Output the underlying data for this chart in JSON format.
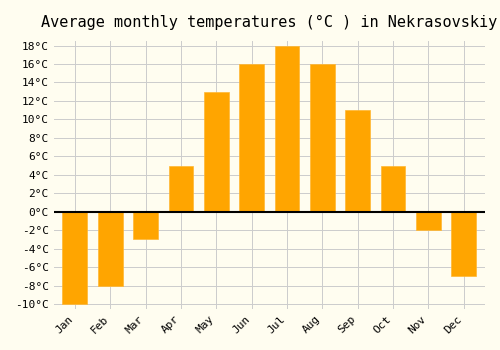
{
  "title": "Average monthly temperatures (°C ) in Nekrasovskiy",
  "months": [
    "Jan",
    "Feb",
    "Mar",
    "Apr",
    "May",
    "Jun",
    "Jul",
    "Aug",
    "Sep",
    "Oct",
    "Nov",
    "Dec"
  ],
  "temperatures": [
    -10,
    -8,
    -3,
    5,
    13,
    16,
    18,
    16,
    11,
    5,
    -2,
    -7
  ],
  "bar_color": "#FFA500",
  "bar_color_light": "#FFB733",
  "ylim": [
    -10,
    18
  ],
  "yticks": [
    -10,
    -8,
    -6,
    -4,
    -2,
    0,
    2,
    4,
    6,
    8,
    10,
    12,
    14,
    16,
    18
  ],
  "background_color": "#FFFDF0",
  "grid_color": "#CCCCCC",
  "zero_line_color": "#000000",
  "title_fontsize": 11
}
